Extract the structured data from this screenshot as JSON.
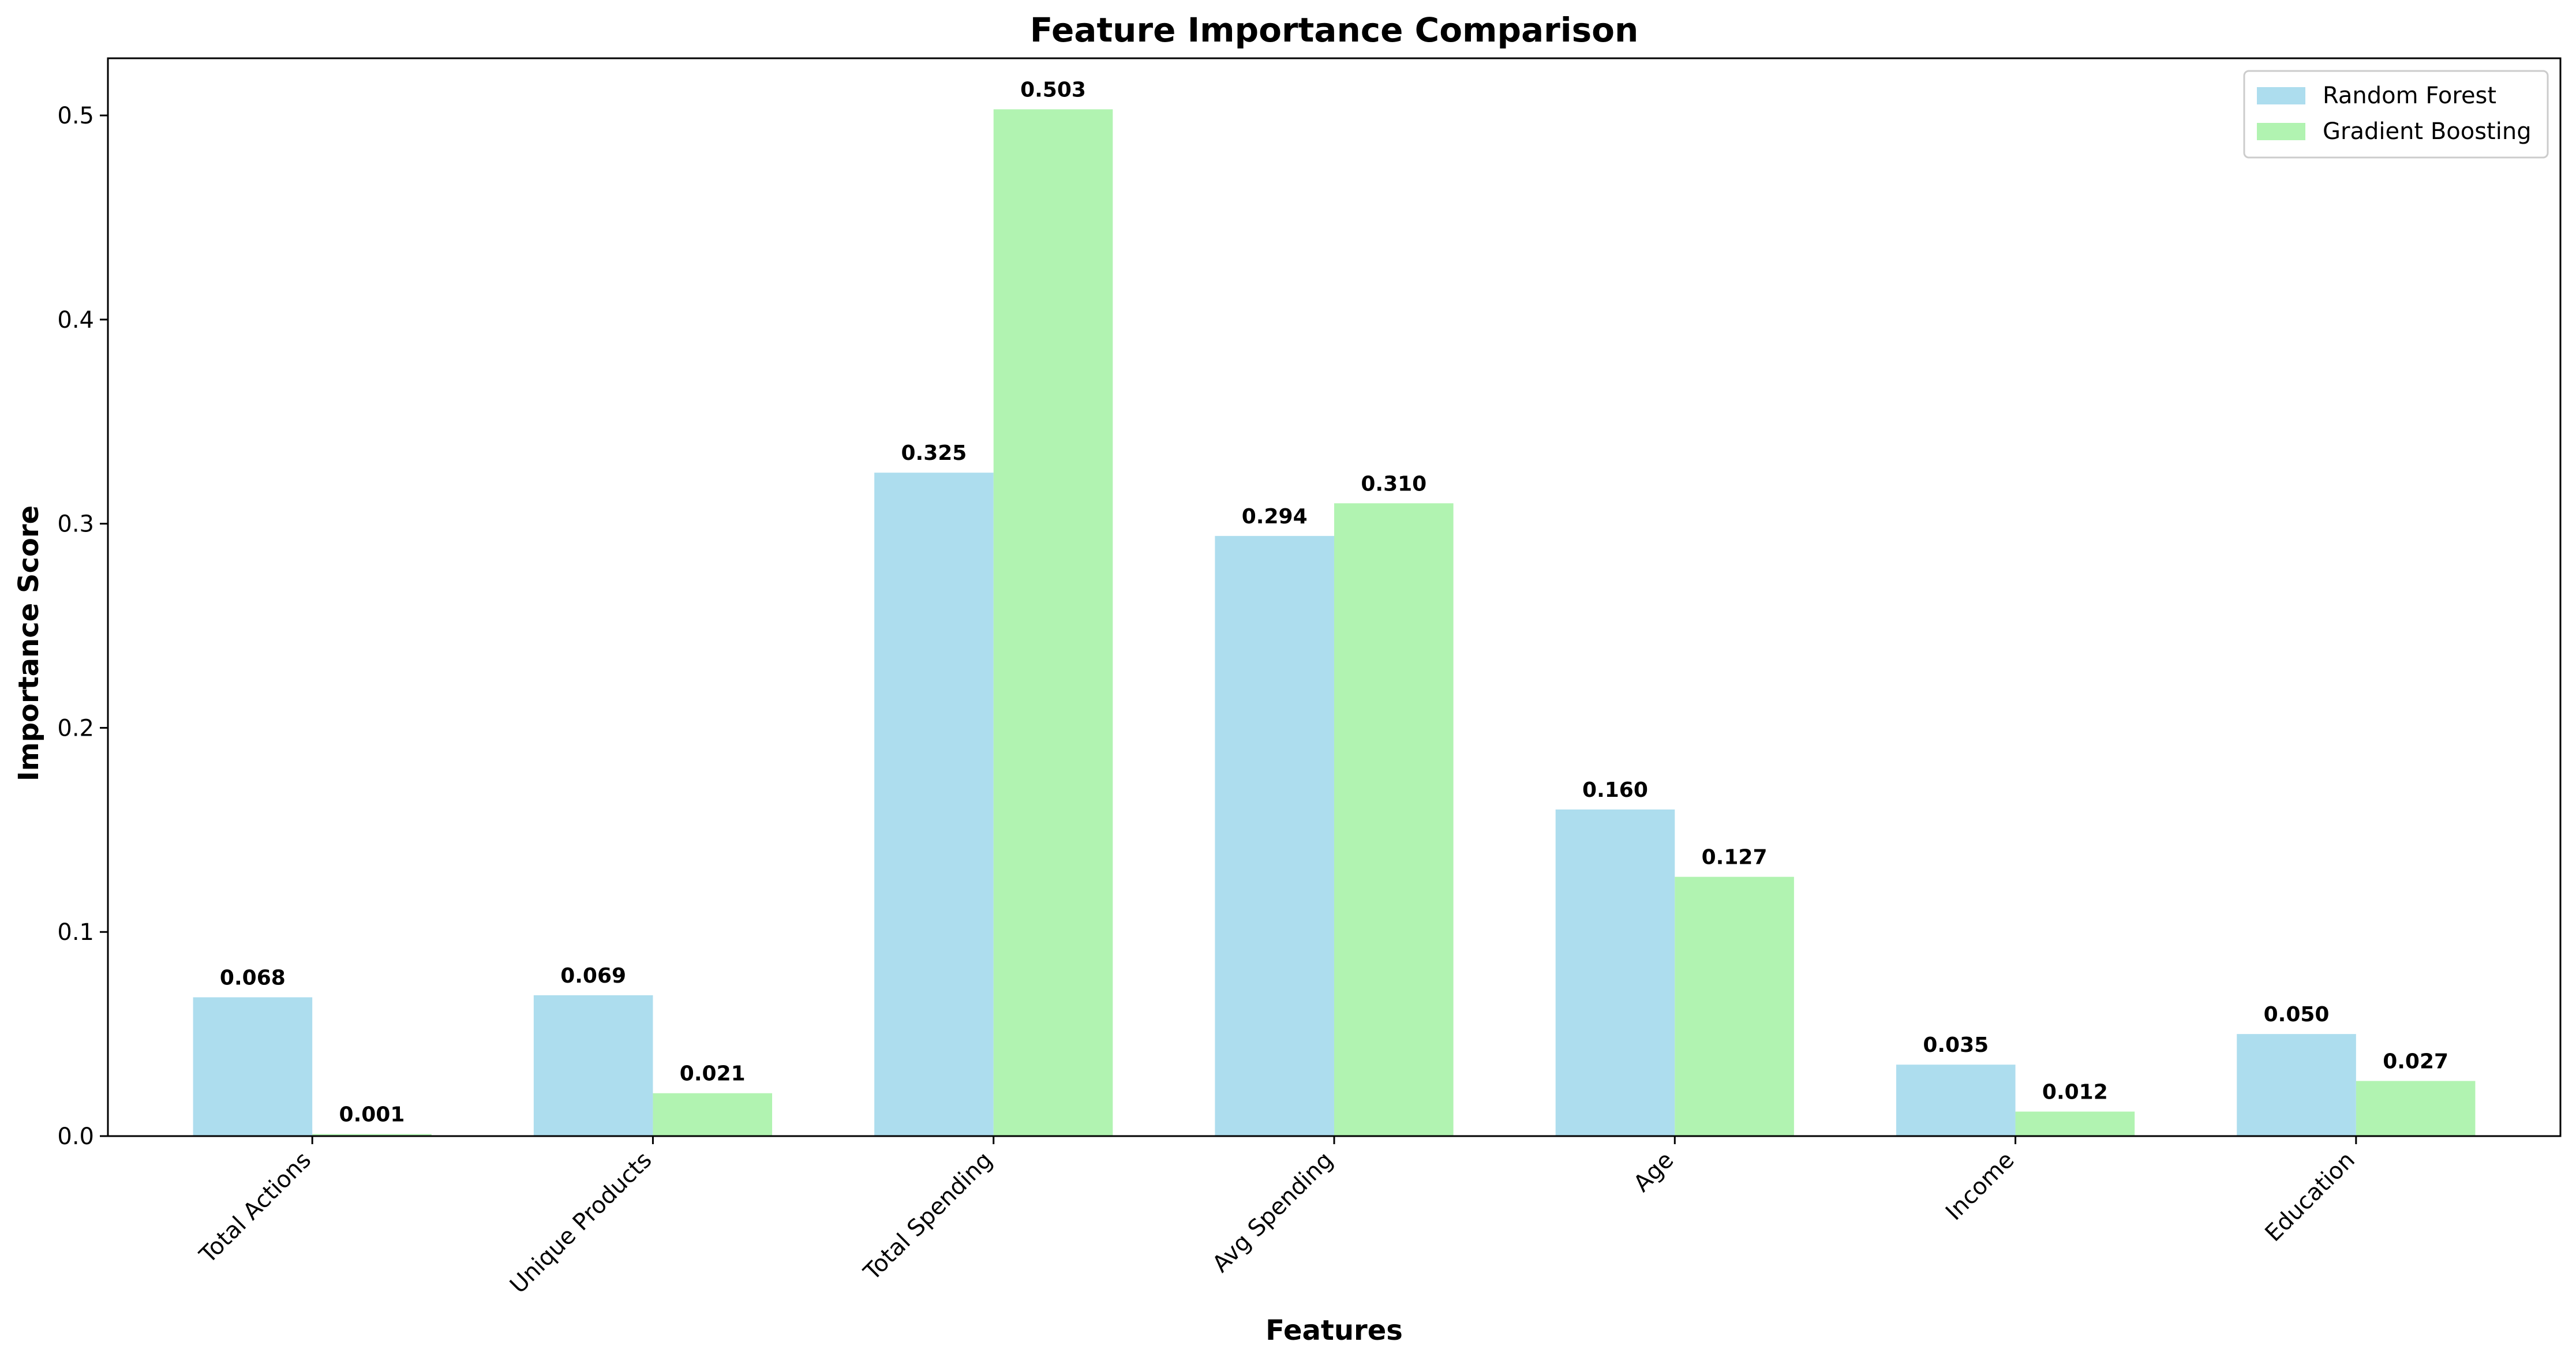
{
  "chart_data": {
    "type": "bar",
    "title": "Feature Importance Comparison",
    "xlabel": "Features",
    "ylabel": "Importance Score",
    "categories": [
      "Total Actions",
      "Unique Products",
      "Total Spending",
      "Avg Spending",
      "Age",
      "Income",
      "Education"
    ],
    "series": [
      {
        "name": "Random Forest",
        "color": "#ADDDEE",
        "values": [
          0.068,
          0.069,
          0.325,
          0.294,
          0.16,
          0.035,
          0.05
        ],
        "labels": [
          "0.068",
          "0.069",
          "0.325",
          "0.294",
          "0.160",
          "0.035",
          "0.050"
        ]
      },
      {
        "name": "Gradient Boosting",
        "color": "#B1F3B1",
        "values": [
          0.001,
          0.021,
          0.503,
          0.31,
          0.127,
          0.012,
          0.027
        ],
        "labels": [
          "0.001",
          "0.021",
          "0.503",
          "0.310",
          "0.127",
          "0.012",
          "0.027"
        ]
      }
    ],
    "ylim": [
      0,
      0.528
    ],
    "yticks": [
      0.0,
      0.1,
      0.2,
      0.3,
      0.4,
      0.5
    ],
    "ytick_labels": [
      "0.0",
      "0.1",
      "0.2",
      "0.3",
      "0.4",
      "0.5"
    ],
    "grid": false,
    "legend": "top-right"
  }
}
